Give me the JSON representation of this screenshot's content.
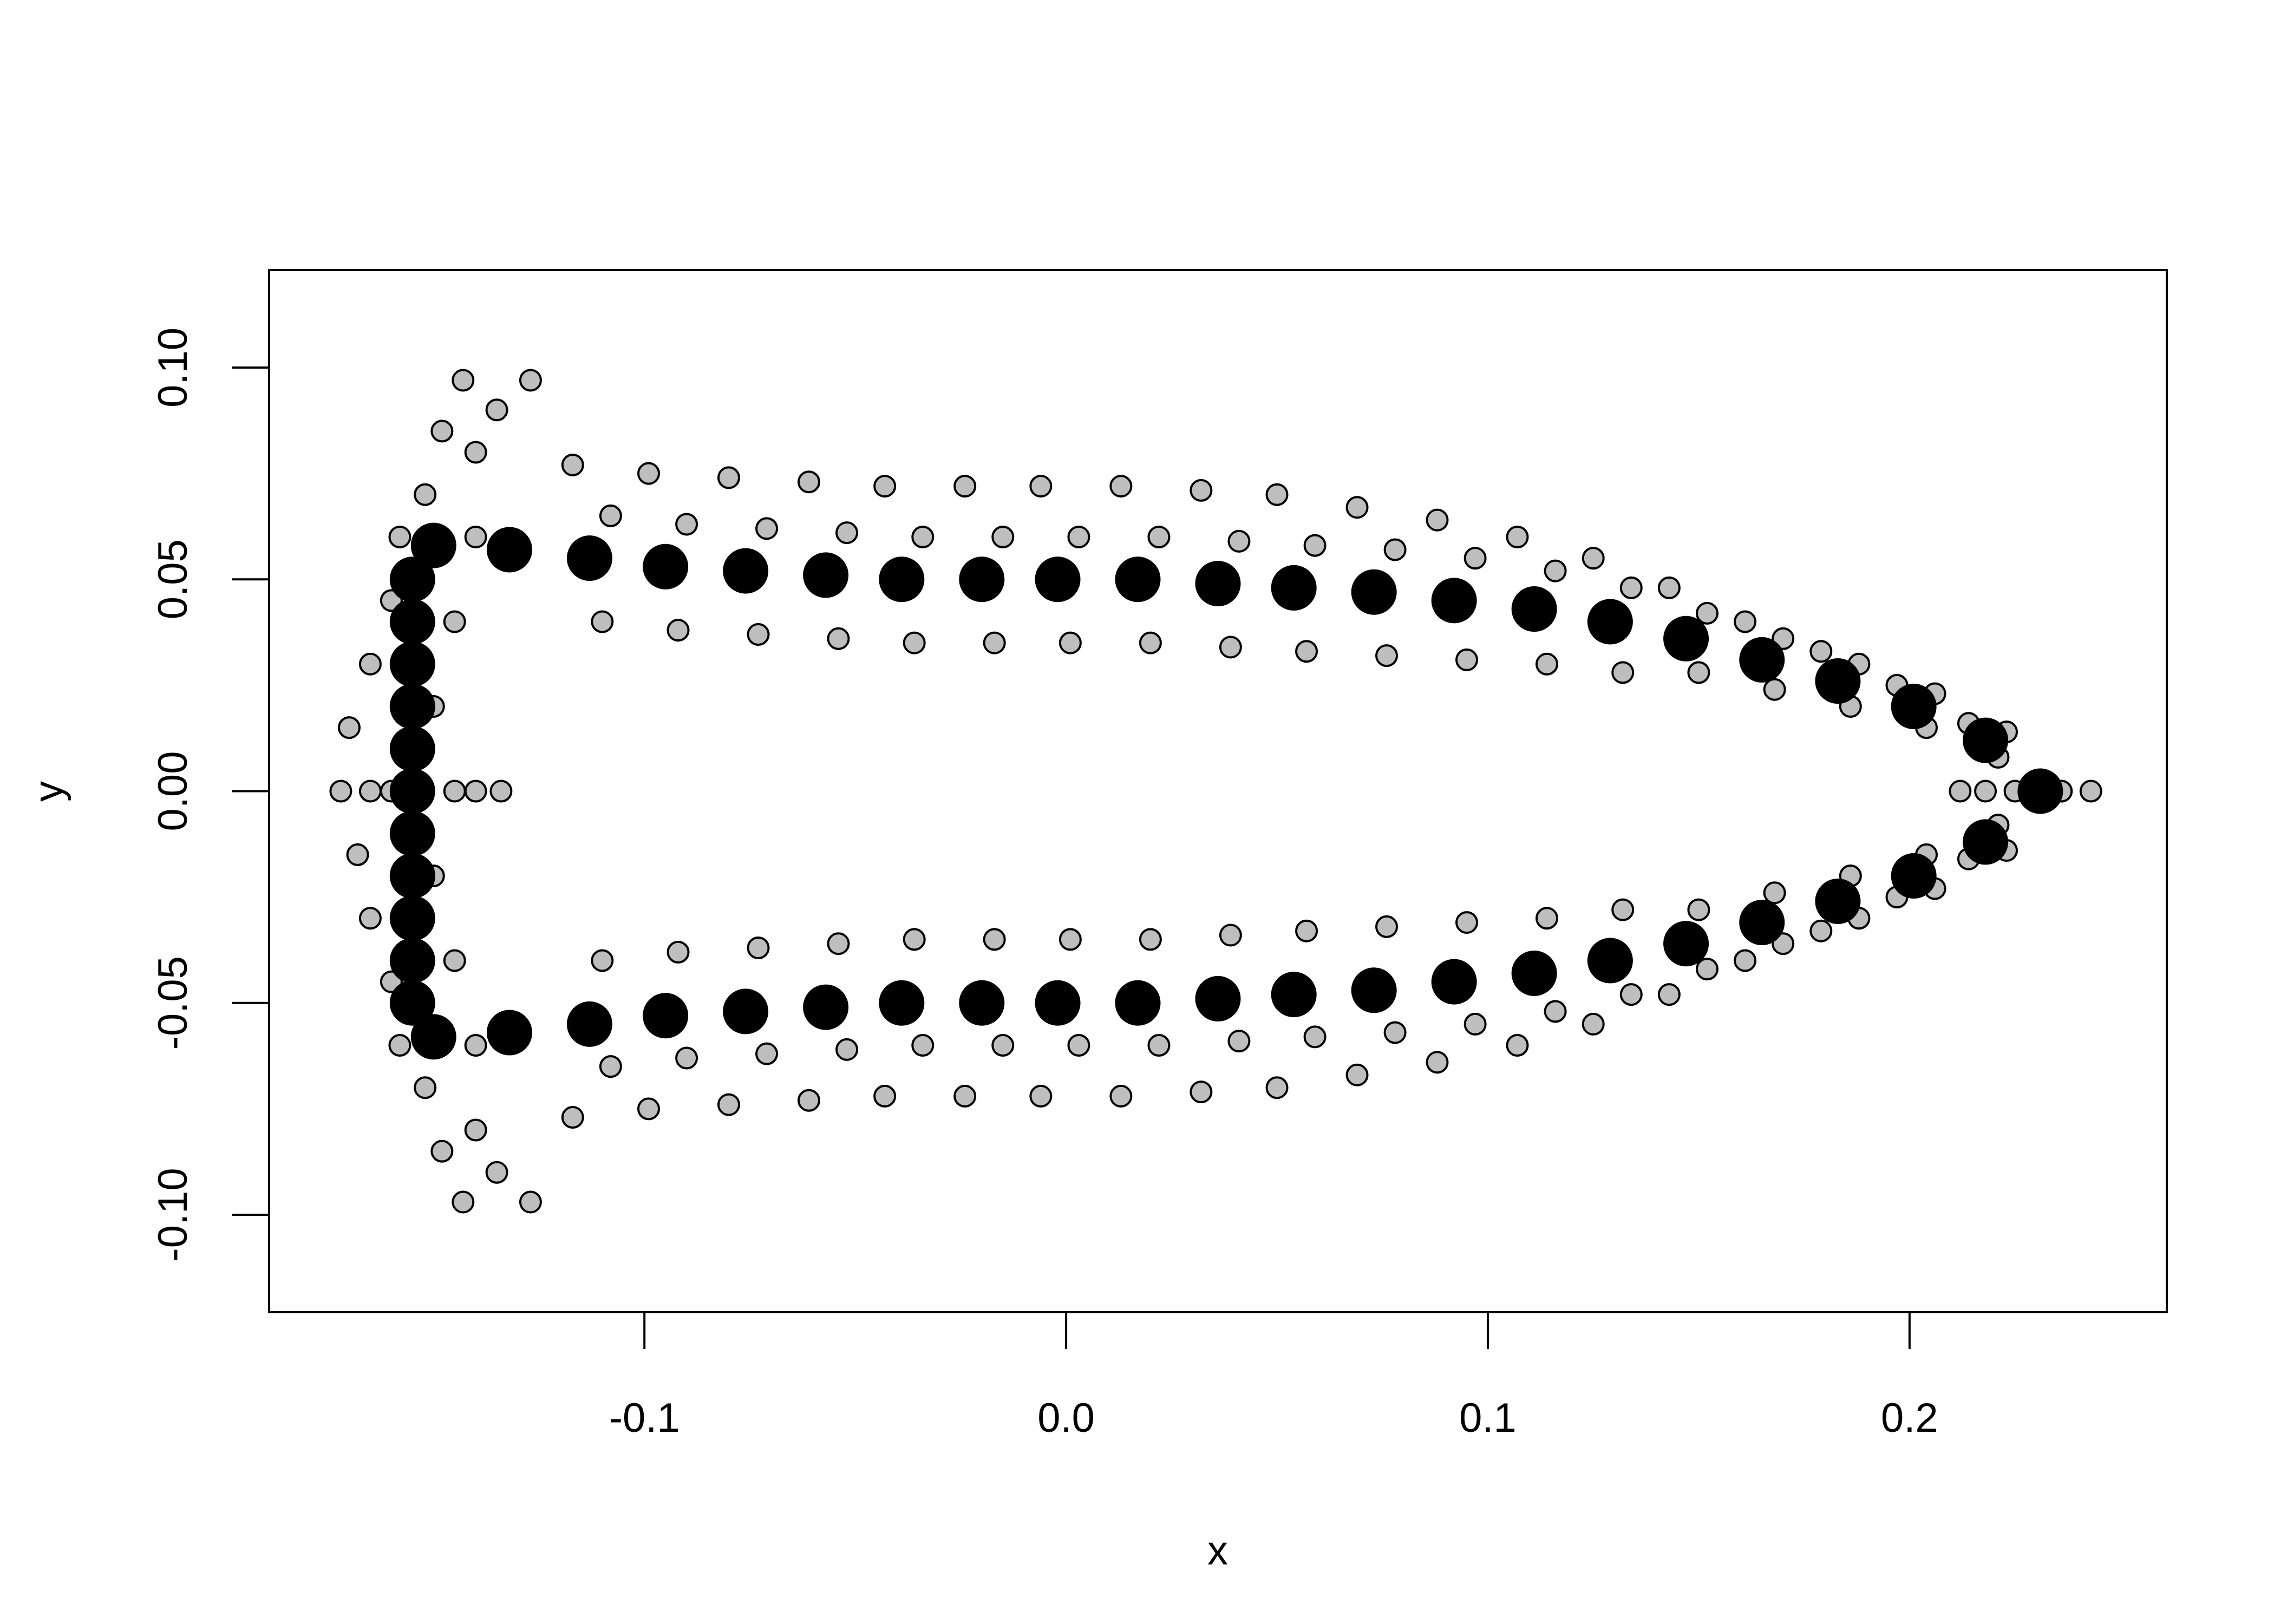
{
  "chart_data": {
    "type": "scatter",
    "xlabel": "x",
    "ylabel": "y",
    "xlim": [
      -0.189,
      0.261
    ],
    "ylim": [
      -0.123,
      0.123
    ],
    "xticks": [
      -0.1,
      {
        "value": 0,
        "label": "0.0"
      },
      0.1,
      0.2
    ],
    "yticks": [
      {
        "value": -0.1,
        "label": "-0.10"
      },
      -0.05,
      {
        "value": 0,
        "label": "0.00"
      },
      0.05,
      {
        "value": 0.1,
        "label": "0.10"
      }
    ],
    "series": [
      {
        "color": "#bebebe",
        "x": [
          -0.17,
          -0.168,
          -0.165,
          -0.165,
          -0.16,
          -0.16,
          -0.158,
          -0.158,
          -0.152,
          -0.152,
          -0.148,
          -0.148,
          -0.143,
          -0.143,
          -0.14,
          -0.14,
          -0.135,
          -0.135,
          -0.127,
          -0.127,
          -0.145,
          -0.145,
          -0.15,
          -0.15,
          -0.14,
          -0.14,
          -0.172,
          -0.165,
          -0.16,
          -0.145,
          -0.14,
          -0.134,
          0.212,
          0.218,
          0.225,
          0.236,
          0.243,
          -0.117,
          -0.11,
          -0.108,
          -0.099,
          -0.092,
          -0.09,
          -0.08,
          -0.073,
          -0.071,
          -0.061,
          -0.054,
          -0.052,
          -0.043,
          -0.036,
          -0.034,
          -0.024,
          -0.017,
          -0.015,
          -0.006,
          0.001,
          0.003,
          0.013,
          0.02,
          0.022,
          0.032,
          0.039,
          0.041,
          0.05,
          0.057,
          0.059,
          0.069,
          0.076,
          0.078,
          0.088,
          0.095,
          0.097,
          0.107,
          0.114,
          0.116,
          0.125,
          0.132,
          0.134,
          0.143,
          0.15,
          0.152,
          0.161,
          0.168,
          0.17,
          0.179,
          0.186,
          0.188,
          0.197,
          0.204,
          0.206,
          0.214,
          0.221,
          0.223,
          -0.117,
          -0.11,
          -0.108,
          -0.099,
          -0.092,
          -0.09,
          -0.08,
          -0.073,
          -0.071,
          -0.061,
          -0.054,
          -0.052,
          -0.043,
          -0.036,
          -0.034,
          -0.024,
          -0.017,
          -0.015,
          -0.006,
          0.001,
          0.003,
          0.013,
          0.02,
          0.022,
          0.032,
          0.039,
          0.041,
          0.05,
          0.057,
          0.059,
          0.069,
          0.076,
          0.078,
          0.088,
          0.095,
          0.097,
          0.107,
          0.114,
          0.116,
          0.125,
          0.132,
          0.134,
          0.143,
          0.15,
          0.152,
          0.161,
          0.168,
          0.17,
          0.179,
          0.186,
          0.188,
          0.197,
          0.204,
          0.206,
          0.214,
          0.221,
          0.223
        ],
        "y": [
          0.015,
          -0.015,
          0.03,
          -0.03,
          0.045,
          -0.045,
          0.06,
          -0.06,
          0.07,
          -0.07,
          0.085,
          -0.085,
          0.097,
          -0.097,
          0.08,
          -0.08,
          0.09,
          -0.09,
          0.097,
          -0.097,
          0.04,
          -0.04,
          0.02,
          -0.02,
          0.06,
          -0.06,
          0,
          0,
          0,
          0,
          0,
          0,
          0,
          0,
          0,
          0,
          0,
          0.077,
          0.04,
          0.065,
          0.075,
          0.038,
          0.063,
          0.074,
          0.037,
          0.062,
          0.073,
          0.036,
          0.061,
          0.072,
          0.035,
          0.06,
          0.072,
          0.035,
          0.06,
          0.072,
          0.035,
          0.06,
          0.072,
          0.035,
          0.06,
          0.071,
          0.034,
          0.059,
          0.07,
          0.033,
          0.058,
          0.067,
          0.032,
          0.057,
          0.064,
          0.031,
          0.055,
          0.06,
          0.03,
          0.052,
          0.055,
          0.028,
          0.048,
          0.048,
          0.028,
          0.042,
          0.04,
          0.024,
          0.036,
          0.033,
          0.02,
          0.03,
          0.025,
          0.015,
          0.023,
          0.016,
          0.008,
          0.014,
          -0.077,
          -0.04,
          -0.065,
          -0.075,
          -0.038,
          -0.063,
          -0.074,
          -0.037,
          -0.062,
          -0.073,
          -0.036,
          -0.061,
          -0.072,
          -0.035,
          -0.06,
          -0.072,
          -0.035,
          -0.06,
          -0.072,
          -0.035,
          -0.06,
          -0.072,
          -0.035,
          -0.06,
          -0.071,
          -0.034,
          -0.059,
          -0.07,
          -0.033,
          -0.058,
          -0.067,
          -0.032,
          -0.057,
          -0.064,
          -0.031,
          -0.055,
          -0.06,
          -0.03,
          -0.052,
          -0.055,
          -0.028,
          -0.048,
          -0.048,
          -0.028,
          -0.042,
          -0.04,
          -0.024,
          -0.036,
          -0.033,
          -0.02,
          -0.03,
          -0.025,
          -0.015,
          -0.023,
          -0.016,
          -0.008,
          -0.014
        ]
      },
      {
        "color": "#000000",
        "x": [
          -0.155,
          -0.155,
          -0.155,
          -0.155,
          -0.155,
          -0.155,
          -0.155,
          -0.155,
          -0.155,
          -0.155,
          -0.155,
          -0.15,
          -0.15,
          -0.132,
          -0.113,
          -0.095,
          -0.076,
          -0.057,
          -0.039,
          -0.02,
          -0.002,
          0.017,
          0.036,
          0.054,
          0.073,
          0.092,
          0.111,
          0.129,
          0.147,
          0.165,
          0.183,
          0.201,
          0.218,
          -0.132,
          -0.113,
          -0.095,
          -0.076,
          -0.057,
          -0.039,
          -0.02,
          -0.002,
          0.017,
          0.036,
          0.054,
          0.073,
          0.092,
          0.111,
          0.129,
          0.147,
          0.165,
          0.183,
          0.201,
          0.218,
          0.231
        ],
        "y": [
          0.05,
          0.04,
          0.03,
          0.02,
          0.01,
          0,
          -0.01,
          -0.02,
          -0.03,
          -0.04,
          -0.05,
          0.058,
          -0.058,
          0.057,
          0.055,
          0.053,
          0.052,
          0.051,
          0.05,
          0.05,
          0.05,
          0.05,
          0.049,
          0.048,
          0.047,
          0.045,
          0.043,
          0.04,
          0.036,
          0.031,
          0.026,
          0.02,
          0.012,
          -0.057,
          -0.055,
          -0.053,
          -0.052,
          -0.051,
          -0.05,
          -0.05,
          -0.05,
          -0.05,
          -0.049,
          -0.048,
          -0.047,
          -0.045,
          -0.043,
          -0.04,
          -0.036,
          -0.031,
          -0.026,
          -0.02,
          -0.012,
          0
        ]
      }
    ]
  }
}
